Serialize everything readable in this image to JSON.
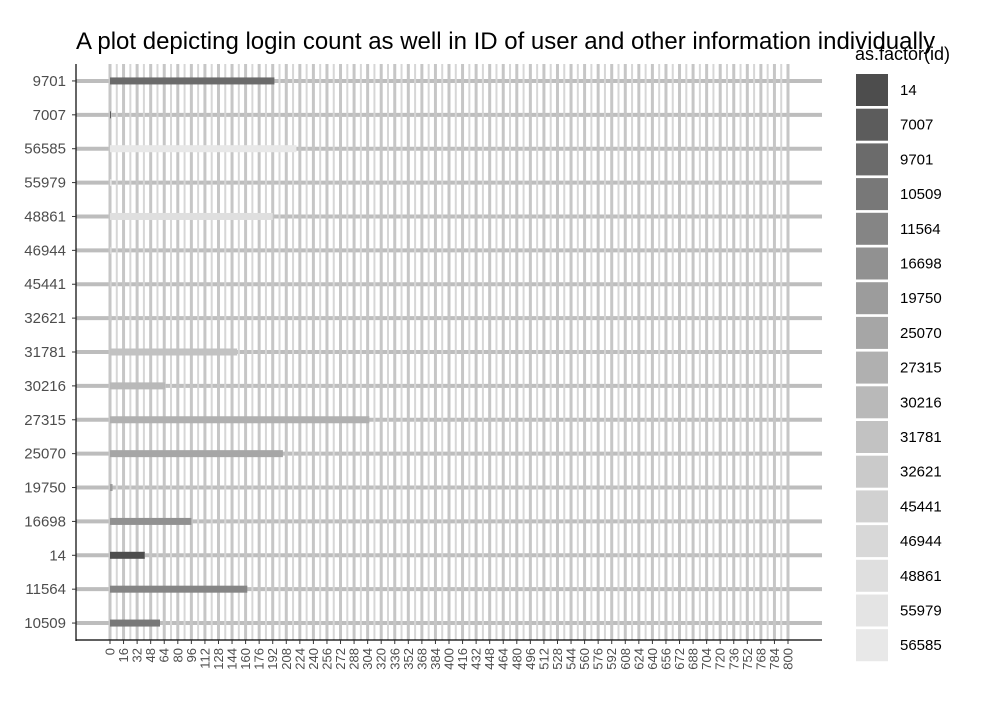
{
  "chart_data": {
    "type": "bar",
    "orientation": "horizontal",
    "title": "A plot depicting login count as well in ID of user and other information individually",
    "xlabel": "",
    "ylabel": "",
    "categories": [
      "10509",
      "11564",
      "14",
      "16698",
      "19750",
      "25070",
      "27315",
      "30216",
      "31781",
      "32621",
      "45441",
      "46944",
      "48861",
      "55979",
      "56585",
      "7007",
      "9701"
    ],
    "values": [
      59,
      162,
      41,
      96,
      3,
      204,
      306,
      65,
      150,
      2,
      2,
      2,
      192,
      2,
      220,
      1,
      194
    ],
    "xlim": [
      0,
      800
    ],
    "x_ticks": [
      0,
      16,
      32,
      48,
      64,
      80,
      96,
      112,
      128,
      144,
      160,
      176,
      192,
      208,
      224,
      240,
      256,
      272,
      288,
      304,
      320,
      336,
      352,
      368,
      384,
      400,
      416,
      432,
      448,
      464,
      480,
      496,
      512,
      528,
      544,
      560,
      576,
      592,
      608,
      624,
      640,
      656,
      672,
      688,
      704,
      720,
      736,
      752,
      768,
      784,
      800
    ],
    "grid": true,
    "legend": {
      "title": "as.factor(id)",
      "position": "right",
      "entries": [
        "14",
        "7007",
        "9701",
        "10509",
        "11564",
        "16698",
        "19750",
        "25070",
        "27315",
        "30216",
        "31781",
        "32621",
        "45441",
        "46944",
        "48861",
        "55979",
        "56585"
      ],
      "colors": [
        "#4d4d4d",
        "#5c5c5c",
        "#6b6b6b",
        "#787878",
        "#858585",
        "#919191",
        "#9c9c9c",
        "#a6a6a6",
        "#b0b0b0",
        "#b9b9b9",
        "#c2c2c2",
        "#cacaca",
        "#d1d1d1",
        "#d8d8d8",
        "#dfdfdf",
        "#e4e4e4",
        "#e8e8e8"
      ]
    }
  }
}
